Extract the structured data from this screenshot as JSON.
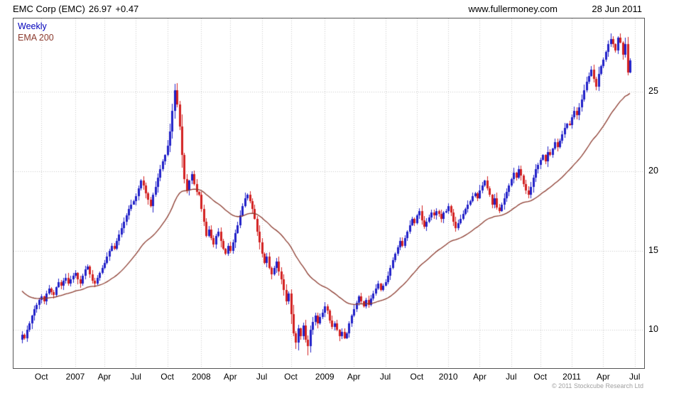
{
  "header": {
    "instrument": "EMC Corp (EMC)",
    "price": "26.97",
    "change": "+0.47",
    "website": "www.fullermoney.com",
    "date": "28 Jun 2011"
  },
  "legend": {
    "weekly": "Weekly",
    "ema": "EMA 200"
  },
  "footer": {
    "copyright": "© 2011 Stockcube Research Ltd"
  },
  "colors": {
    "up_candle": "#2121c8",
    "down_candle": "#d22121",
    "ema_line": "#8b3a2e",
    "legend_weekly": "#0000bb",
    "grid": "#c9c9c9",
    "axis_text": "#000000",
    "border": "#555555",
    "copyright": "#a0a0a0"
  },
  "chart_data": {
    "type": "candlestick",
    "title": "EMC Corp (EMC) weekly candlestick chart with 200-day EMA",
    "series": [
      {
        "name": "Weekly",
        "type": "candlestick"
      },
      {
        "name": "EMA 200",
        "type": "line"
      }
    ],
    "y_axis_side": "right",
    "grid": "dotted",
    "y_ticks": [
      25,
      20,
      15,
      10
    ],
    "y_range": [
      7.6,
      29.6
    ],
    "x_ticks": [
      {
        "label": "Oct",
        "idx": 8
      },
      {
        "label": "2007",
        "idx": 22
      },
      {
        "label": "Apr",
        "idx": 34
      },
      {
        "label": "Jul",
        "idx": 47
      },
      {
        "label": "Oct",
        "idx": 60
      },
      {
        "label": "2008",
        "idx": 74
      },
      {
        "label": "Apr",
        "idx": 86
      },
      {
        "label": "Jul",
        "idx": 99
      },
      {
        "label": "Oct",
        "idx": 111
      },
      {
        "label": "2009",
        "idx": 125
      },
      {
        "label": "Apr",
        "idx": 137
      },
      {
        "label": "Jul",
        "idx": 150
      },
      {
        "label": "Oct",
        "idx": 163
      },
      {
        "label": "2010",
        "idx": 176
      },
      {
        "label": "Apr",
        "idx": 189
      },
      {
        "label": "Jul",
        "idx": 202
      },
      {
        "label": "Oct",
        "idx": 214
      },
      {
        "label": "2011",
        "idx": 227
      },
      {
        "label": "Apr",
        "idx": 240
      },
      {
        "label": "Jul",
        "idx": 253
      }
    ],
    "weekly_close": [
      9.7,
      9.5,
      10.0,
      10.4,
      10.9,
      11.3,
      11.6,
      11.9,
      12.1,
      11.8,
      12.3,
      12.6,
      12.4,
      12.2,
      12.7,
      13.0,
      12.8,
      13.1,
      13.3,
      12.9,
      13.2,
      13.4,
      13.6,
      13.2,
      12.9,
      13.4,
      13.8,
      14.0,
      13.5,
      13.1,
      12.9,
      13.3,
      13.6,
      13.9,
      14.2,
      14.6,
      15.0,
      15.3,
      15.1,
      15.6,
      16.0,
      16.4,
      16.8,
      17.2,
      17.6,
      17.9,
      18.1,
      18.4,
      18.9,
      19.4,
      19.1,
      18.6,
      18.2,
      17.8,
      18.5,
      19.0,
      19.6,
      20.1,
      20.6,
      21.0,
      21.6,
      22.5,
      23.8,
      25.1,
      24.2,
      22.8,
      21.0,
      19.5,
      18.8,
      19.4,
      19.8,
      19.2,
      18.7,
      18.5,
      17.6,
      16.8,
      15.9,
      16.3,
      15.8,
      15.4,
      15.9,
      16.2,
      15.6,
      15.1,
      14.8,
      15.3,
      15.0,
      15.5,
      16.1,
      16.6,
      17.2,
      17.8,
      18.3,
      18.5,
      18.1,
      17.6,
      17.0,
      16.2,
      15.5,
      14.8,
      14.2,
      14.6,
      13.9,
      13.5,
      13.9,
      14.3,
      13.7,
      13.2,
      12.5,
      11.8,
      12.3,
      11.0,
      9.8,
      9.2,
      10.1,
      9.6,
      10.3,
      9.4,
      9.0,
      10.0,
      10.5,
      10.9,
      10.4,
      10.8,
      11.1,
      11.5,
      11.2,
      10.6,
      10.2,
      10.4,
      10.0,
      9.6,
      9.9,
      9.5,
      9.8,
      10.4,
      10.9,
      11.3,
      11.7,
      12.1,
      11.8,
      11.5,
      11.9,
      11.6,
      12.0,
      12.3,
      12.6,
      12.9,
      12.5,
      12.8,
      13.0,
      13.4,
      13.9,
      14.4,
      14.8,
      15.2,
      15.6,
      15.3,
      15.8,
      16.2,
      16.6,
      17.0,
      16.7,
      17.2,
      17.5,
      16.9,
      16.5,
      16.8,
      17.1,
      17.4,
      17.2,
      17.5,
      17.3,
      17.0,
      17.4,
      17.5,
      17.8,
      17.4,
      16.8,
      16.4,
      16.7,
      17.0,
      17.3,
      17.6,
      17.9,
      18.1,
      18.4,
      18.6,
      18.3,
      18.8,
      19.1,
      19.4,
      18.9,
      18.5,
      17.9,
      18.3,
      17.7,
      17.5,
      17.9,
      18.3,
      18.7,
      19.1,
      19.5,
      19.9,
      19.6,
      20.1,
      19.7,
      19.2,
      18.8,
      18.5,
      19.0,
      19.6,
      20.1,
      20.4,
      20.7,
      21.0,
      20.6,
      21.2,
      21.0,
      21.4,
      21.8,
      21.5,
      21.9,
      22.3,
      22.7,
      23.0,
      22.9,
      23.4,
      23.8,
      23.5,
      24.0,
      24.5,
      25.1,
      25.6,
      26.0,
      26.4,
      25.8,
      25.3,
      26.1,
      26.6,
      27.0,
      27.5,
      28.0,
      28.3,
      28.0,
      27.6,
      28.4,
      28.1,
      27.3,
      28.0,
      26.2,
      26.97
    ],
    "extremes": [
      {
        "idx": 63,
        "high": 25.5
      },
      {
        "idx": 113,
        "low": 8.8
      },
      {
        "idx": 118,
        "low": 8.4
      },
      {
        "idx": 243,
        "high": 28.65
      }
    ],
    "ema": {
      "label": "EMA 200",
      "period_weeks": 40,
      "alpha_weekly": 0.05,
      "initial": 12.6
    },
    "wick_seed": 20110628
  }
}
